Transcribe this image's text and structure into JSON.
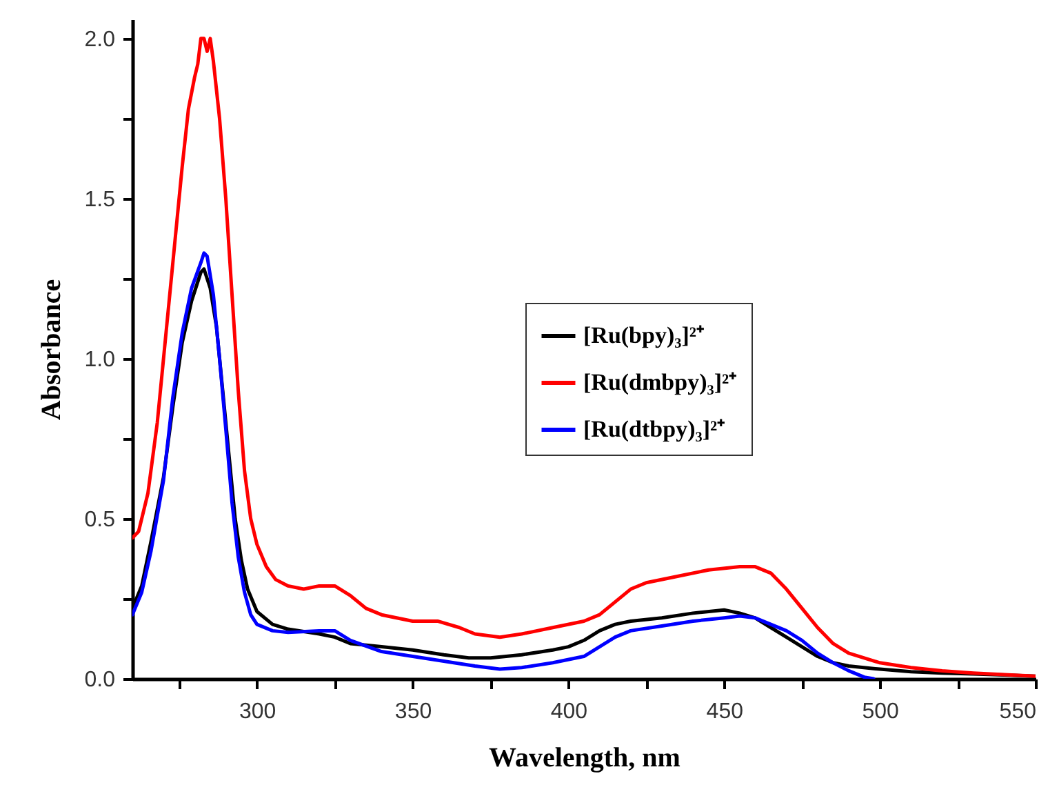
{
  "chart_data": {
    "type": "line",
    "xlabel": "Wavelength, nm",
    "ylabel": "Absorbance",
    "xlim": [
      260,
      550
    ],
    "xticks": [
      {
        "value": 275,
        "label": null
      },
      300,
      {
        "value": 325,
        "label": null
      },
      350,
      {
        "value": 375,
        "label": null
      },
      400,
      {
        "value": 425,
        "label": null
      },
      450,
      {
        "value": 475,
        "label": null
      },
      500,
      {
        "value": 525,
        "label": null
      },
      550
    ],
    "ylim": [
      0,
      2.06
    ],
    "yticks": [
      {
        "value": 0,
        "label": "0.0"
      },
      {
        "value": 0.25,
        "label": null
      },
      0.5,
      {
        "value": 0.75,
        "label": null
      },
      {
        "value": 1,
        "label": "1.0"
      },
      {
        "value": 1.25,
        "label": null
      },
      1.5,
      {
        "value": 1.75,
        "label": null
      },
      {
        "value": 2,
        "label": "2.0"
      }
    ],
    "legend": "right",
    "grid": false,
    "line_style": "solid",
    "series": [
      {
        "name": "[Ru(bpy)₃]²⁺",
        "color": "#000000",
        "x": [
          260,
          263,
          266,
          270,
          273,
          276,
          279,
          282,
          283,
          285,
          287,
          289,
          291,
          293,
          295,
          297,
          300,
          305,
          310,
          320,
          325,
          330,
          340,
          350,
          360,
          368,
          375,
          385,
          395,
          400,
          405,
          410,
          415,
          420,
          430,
          440,
          450,
          455,
          460,
          465,
          470,
          475,
          480,
          485,
          490,
          500,
          510,
          520,
          530,
          540,
          550
        ],
        "values": [
          0.22,
          0.29,
          0.43,
          0.63,
          0.85,
          1.05,
          1.18,
          1.27,
          1.28,
          1.22,
          1.1,
          0.9,
          0.7,
          0.5,
          0.37,
          0.28,
          0.21,
          0.17,
          0.155,
          0.14,
          0.13,
          0.11,
          0.1,
          0.09,
          0.075,
          0.065,
          0.065,
          0.075,
          0.09,
          0.1,
          0.12,
          0.15,
          0.17,
          0.18,
          0.19,
          0.205,
          0.215,
          0.205,
          0.19,
          0.16,
          0.13,
          0.1,
          0.07,
          0.05,
          0.04,
          0.03,
          0.022,
          0.018,
          0.015,
          0.012,
          0.008
        ]
      },
      {
        "name": "[Ru(dmbpy)₃]²⁺",
        "color": "#ff0000",
        "x": [
          260,
          262,
          265,
          268,
          270,
          273,
          276,
          278,
          280,
          281,
          282,
          283,
          284,
          285,
          286,
          288,
          290,
          292,
          294,
          296,
          298,
          300,
          303,
          306,
          310,
          315,
          320,
          325,
          330,
          335,
          340,
          350,
          358,
          365,
          370,
          378,
          385,
          395,
          405,
          410,
          415,
          420,
          425,
          435,
          445,
          455,
          460,
          465,
          470,
          475,
          480,
          485,
          490,
          500,
          510,
          520,
          530,
          540,
          550
        ],
        "values": [
          0.44,
          0.46,
          0.58,
          0.8,
          1.0,
          1.3,
          1.6,
          1.78,
          1.88,
          1.92,
          2.0,
          2.0,
          1.96,
          2.0,
          1.93,
          1.75,
          1.5,
          1.2,
          0.9,
          0.65,
          0.5,
          0.42,
          0.35,
          0.31,
          0.29,
          0.28,
          0.29,
          0.29,
          0.26,
          0.22,
          0.2,
          0.18,
          0.18,
          0.16,
          0.14,
          0.13,
          0.14,
          0.16,
          0.18,
          0.2,
          0.24,
          0.28,
          0.3,
          0.32,
          0.34,
          0.35,
          0.35,
          0.33,
          0.28,
          0.22,
          0.16,
          0.11,
          0.08,
          0.05,
          0.035,
          0.025,
          0.018,
          0.013,
          0.008
        ]
      },
      {
        "name": "[Ru(dtbpy)₃]²⁺",
        "color": "#0000ff",
        "x": [
          260,
          263,
          266,
          270,
          273,
          276,
          279,
          282,
          283,
          284,
          286,
          288,
          290,
          292,
          294,
          296,
          298,
          300,
          305,
          310,
          320,
          325,
          330,
          340,
          350,
          360,
          370,
          378,
          385,
          395,
          405,
          410,
          415,
          420,
          430,
          440,
          450,
          455,
          460,
          465,
          470,
          475,
          480,
          485,
          490,
          495,
          498
        ],
        "values": [
          0.2,
          0.27,
          0.4,
          0.62,
          0.88,
          1.08,
          1.22,
          1.3,
          1.33,
          1.32,
          1.2,
          1.0,
          0.78,
          0.55,
          0.38,
          0.27,
          0.2,
          0.17,
          0.15,
          0.145,
          0.15,
          0.15,
          0.12,
          0.085,
          0.07,
          0.055,
          0.04,
          0.03,
          0.035,
          0.05,
          0.07,
          0.1,
          0.13,
          0.15,
          0.165,
          0.18,
          0.19,
          0.196,
          0.19,
          0.17,
          0.15,
          0.12,
          0.08,
          0.05,
          0.025,
          0.005,
          0
        ]
      }
    ]
  }
}
